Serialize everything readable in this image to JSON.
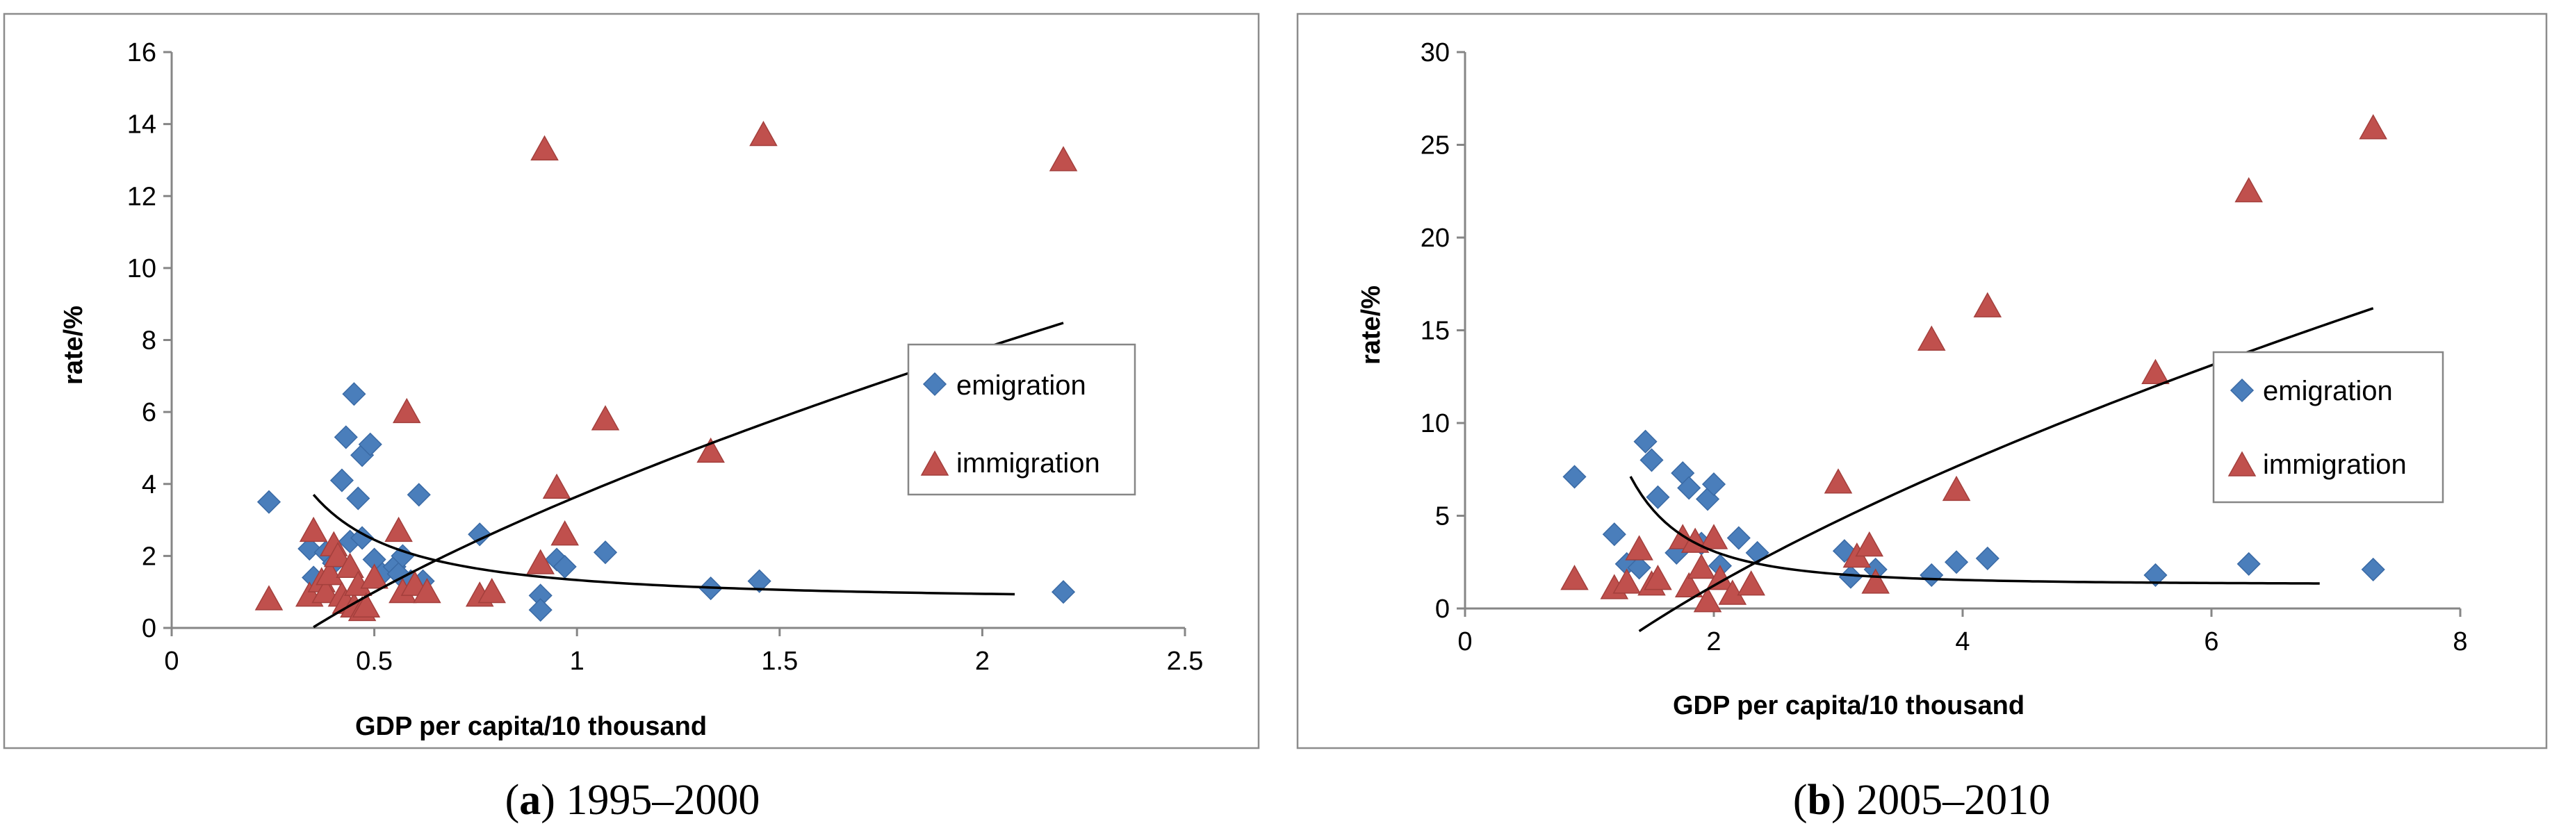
{
  "colors": {
    "emigration": "#4a7ebb",
    "immigration": "#c0504d",
    "frame": "#8c8c8c",
    "axis": "#868686"
  },
  "chart_data": [
    {
      "type": "scatter",
      "title": "",
      "caption": {
        "label": "a",
        "period": "1995–2000"
      },
      "xlabel": "GDP per capita/10 thousand",
      "ylabel": "rate/%",
      "xlim": [
        0,
        2.5
      ],
      "ylim": [
        0,
        16
      ],
      "xticks": [
        0,
        0.5,
        1,
        1.5,
        2,
        2.5
      ],
      "xtick_labels": [
        "0",
        "0.5",
        "1",
        "1.5",
        "2",
        "2.5"
      ],
      "yticks": [
        0,
        2,
        4,
        6,
        8,
        10,
        12,
        14,
        16
      ],
      "ytick_labels": [
        "0",
        "2",
        "4",
        "6",
        "8",
        "10",
        "12",
        "14",
        "16"
      ],
      "legend_position": "right",
      "series": [
        {
          "name": "emigration",
          "marker": "diamond",
          "points": [
            [
              0.24,
              3.5
            ],
            [
              0.34,
              2.2
            ],
            [
              0.35,
              1.4
            ],
            [
              0.38,
              2.1
            ],
            [
              0.4,
              1.8
            ],
            [
              0.42,
              4.1
            ],
            [
              0.43,
              5.3
            ],
            [
              0.44,
              2.4
            ],
            [
              0.45,
              6.5
            ],
            [
              0.46,
              3.6
            ],
            [
              0.47,
              4.8
            ],
            [
              0.47,
              2.5
            ],
            [
              0.49,
              5.1
            ],
            [
              0.5,
              1.9
            ],
            [
              0.52,
              1.5
            ],
            [
              0.55,
              1.7
            ],
            [
              0.56,
              1.5
            ],
            [
              0.57,
              2.0
            ],
            [
              0.59,
              1.3
            ],
            [
              0.61,
              3.7
            ],
            [
              0.62,
              1.3
            ],
            [
              0.76,
              2.6
            ],
            [
              0.91,
              0.9
            ],
            [
              0.91,
              0.5
            ],
            [
              0.95,
              1.9
            ],
            [
              0.97,
              1.7
            ],
            [
              1.07,
              2.1
            ],
            [
              1.33,
              1.1
            ],
            [
              1.45,
              1.3
            ],
            [
              2.2,
              1.0
            ]
          ]
        },
        {
          "name": "immigration",
          "marker": "triangle",
          "points": [
            [
              0.24,
              0.8
            ],
            [
              0.34,
              0.9
            ],
            [
              0.35,
              2.7
            ],
            [
              0.37,
              1.3
            ],
            [
              0.38,
              1.0
            ],
            [
              0.39,
              1.5
            ],
            [
              0.4,
              2.3
            ],
            [
              0.41,
              2.0
            ],
            [
              0.42,
              0.9
            ],
            [
              0.43,
              0.7
            ],
            [
              0.44,
              1.7
            ],
            [
              0.45,
              0.6
            ],
            [
              0.46,
              1.2
            ],
            [
              0.47,
              0.5
            ],
            [
              0.48,
              0.6
            ],
            [
              0.5,
              1.4
            ],
            [
              0.56,
              2.7
            ],
            [
              0.57,
              1.0
            ],
            [
              0.58,
              6.0
            ],
            [
              0.6,
              1.2
            ],
            [
              0.63,
              1.0
            ],
            [
              0.76,
              0.9
            ],
            [
              0.79,
              1.0
            ],
            [
              0.91,
              1.8
            ],
            [
              0.92,
              13.3
            ],
            [
              0.95,
              3.9
            ],
            [
              0.97,
              2.6
            ],
            [
              1.07,
              5.8
            ],
            [
              1.33,
              4.9
            ],
            [
              1.46,
              13.7
            ],
            [
              2.2,
              13.0
            ]
          ]
        }
      ],
      "trendlines": [
        {
          "series": "emigration",
          "kind": "power",
          "a": 0.58,
          "b": -1.55,
          "c": 0.75,
          "x_range": [
            0.35,
            2.08
          ]
        },
        {
          "series": "immigration",
          "kind": "power",
          "a": 7.5,
          "b": 0.63,
          "c": -3.85,
          "x_range": [
            0.35,
            2.2
          ]
        }
      ]
    },
    {
      "type": "scatter",
      "title": "",
      "caption": {
        "label": "b",
        "period": "2005–2010"
      },
      "xlabel": "GDP per capita/10 thousand",
      "ylabel": "rate/%",
      "xlim": [
        0,
        8
      ],
      "ylim": [
        0,
        30
      ],
      "xticks": [
        0,
        2,
        4,
        6,
        8
      ],
      "xtick_labels": [
        "0",
        "2",
        "4",
        "6",
        "8"
      ],
      "yticks": [
        0,
        5,
        10,
        15,
        20,
        25,
        30
      ],
      "ytick_labels": [
        "0",
        "5",
        "10",
        "15",
        "20",
        "25",
        "30"
      ],
      "legend_position": "right",
      "series": [
        {
          "name": "emigration",
          "marker": "diamond",
          "points": [
            [
              0.88,
              7.1
            ],
            [
              1.2,
              4.0
            ],
            [
              1.3,
              2.4
            ],
            [
              1.4,
              2.2
            ],
            [
              1.45,
              9.0
            ],
            [
              1.5,
              8.0
            ],
            [
              1.55,
              6.0
            ],
            [
              1.7,
              3.0
            ],
            [
              1.75,
              7.3
            ],
            [
              1.8,
              6.5
            ],
            [
              1.9,
              3.5
            ],
            [
              1.95,
              5.9
            ],
            [
              2.0,
              6.7
            ],
            [
              2.05,
              2.3
            ],
            [
              2.2,
              3.8
            ],
            [
              2.35,
              3.0
            ],
            [
              3.05,
              3.1
            ],
            [
              3.1,
              1.7
            ],
            [
              3.3,
              2.1
            ],
            [
              3.75,
              1.8
            ],
            [
              3.95,
              2.5
            ],
            [
              4.2,
              2.7
            ],
            [
              5.55,
              1.8
            ],
            [
              6.3,
              2.4
            ],
            [
              7.3,
              2.1
            ]
          ]
        },
        {
          "name": "immigration",
          "marker": "triangle",
          "points": [
            [
              0.88,
              1.6
            ],
            [
              1.2,
              1.1
            ],
            [
              1.3,
              1.4
            ],
            [
              1.4,
              3.2
            ],
            [
              1.5,
              1.3
            ],
            [
              1.55,
              1.6
            ],
            [
              1.75,
              3.8
            ],
            [
              1.8,
              1.2
            ],
            [
              1.85,
              3.6
            ],
            [
              1.9,
              2.2
            ],
            [
              1.95,
              0.4
            ],
            [
              2.0,
              3.8
            ],
            [
              2.05,
              1.6
            ],
            [
              2.15,
              0.8
            ],
            [
              2.3,
              1.3
            ],
            [
              3.0,
              6.8
            ],
            [
              3.15,
              2.8
            ],
            [
              3.25,
              3.4
            ],
            [
              3.3,
              1.4
            ],
            [
              3.75,
              14.5
            ],
            [
              3.95,
              6.4
            ],
            [
              4.2,
              16.3
            ],
            [
              5.55,
              12.7
            ],
            [
              6.3,
              22.5
            ],
            [
              7.3,
              25.9
            ]
          ]
        }
      ],
      "trendlines": [
        {
          "series": "emigration",
          "kind": "power",
          "a": 13.3,
          "b": -2.9,
          "c": 1.3,
          "x_range": [
            1.33,
            6.87
          ]
        },
        {
          "series": "immigration",
          "kind": "power",
          "a": 8.4,
          "b": 0.6,
          "c": -11.5,
          "x_range": [
            1.4,
            7.3
          ]
        }
      ]
    }
  ]
}
